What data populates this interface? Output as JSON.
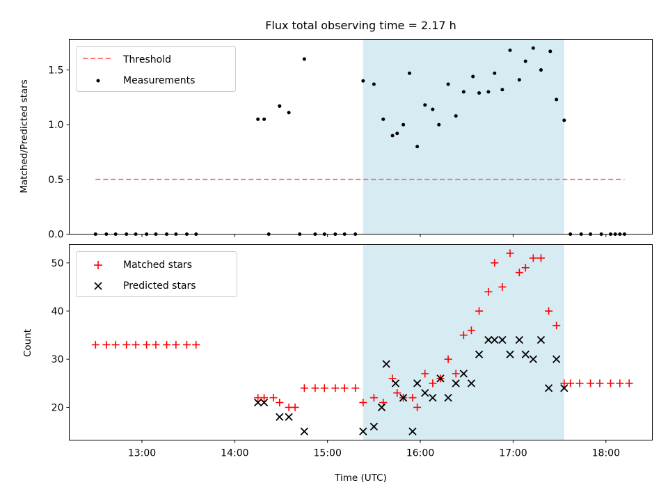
{
  "chart_data": [
    {
      "type": "scatter",
      "title": "Flux total observing time = 2.17 h",
      "xlabel": "",
      "ylabel": "Matched/Predicted stars",
      "x_unit": "hours UTC",
      "xlim": [
        "12:13",
        "18:30"
      ],
      "ylim": [
        0,
        1.78
      ],
      "yticks": [
        0.0,
        0.5,
        1.0,
        1.5
      ],
      "ytick_labels": [
        "0.0",
        "0.5",
        "1.0",
        "1.5"
      ],
      "legend_position": "upper-left",
      "grid": false,
      "shaded_interval": {
        "start": "15:23",
        "end": "17:33",
        "color": "#add8e6"
      },
      "threshold": {
        "name": "Threshold",
        "value": 0.5,
        "x_start": "12:30",
        "x_end": "18:12",
        "color": "#ff7070",
        "style": "dashed"
      },
      "series": [
        {
          "name": "Measurements",
          "color": "#000000",
          "marker": "dot",
          "points": [
            [
              "12:30",
              0
            ],
            [
              "12:37",
              0
            ],
            [
              "12:43",
              0
            ],
            [
              "12:50",
              0
            ],
            [
              "12:56",
              0
            ],
            [
              "13:03",
              0
            ],
            [
              "13:09",
              0
            ],
            [
              "13:16",
              0
            ],
            [
              "13:22",
              0
            ],
            [
              "13:29",
              0
            ],
            [
              "13:35",
              0
            ],
            [
              "14:15",
              1.05
            ],
            [
              "14:19",
              1.05
            ],
            [
              "14:22",
              0
            ],
            [
              "14:29",
              1.17
            ],
            [
              "14:35",
              1.11
            ],
            [
              "14:42",
              0
            ],
            [
              "14:45",
              1.6
            ],
            [
              "14:52",
              0
            ],
            [
              "14:58",
              0
            ],
            [
              "15:05",
              0
            ],
            [
              "15:11",
              0
            ],
            [
              "15:18",
              0
            ],
            [
              "15:23",
              1.4
            ],
            [
              "15:30",
              1.37
            ],
            [
              "15:36",
              1.05
            ],
            [
              "15:42",
              0.9
            ],
            [
              "15:45",
              0.92
            ],
            [
              "15:49",
              1.0
            ],
            [
              "15:53",
              1.47
            ],
            [
              "15:58",
              0.8
            ],
            [
              "16:03",
              1.18
            ],
            [
              "16:08",
              1.14
            ],
            [
              "16:12",
              1.0
            ],
            [
              "16:18",
              1.37
            ],
            [
              "16:23",
              1.08
            ],
            [
              "16:28",
              1.3
            ],
            [
              "16:34",
              1.44
            ],
            [
              "16:38",
              1.29
            ],
            [
              "16:44",
              1.3
            ],
            [
              "16:48",
              1.47
            ],
            [
              "16:53",
              1.32
            ],
            [
              "16:58",
              1.68
            ],
            [
              "17:04",
              1.41
            ],
            [
              "17:08",
              1.58
            ],
            [
              "17:13",
              1.7
            ],
            [
              "17:18",
              1.5
            ],
            [
              "17:24",
              1.67
            ],
            [
              "17:28",
              1.23
            ],
            [
              "17:33",
              1.04
            ],
            [
              "17:37",
              0
            ],
            [
              "17:44",
              0
            ],
            [
              "17:50",
              0
            ],
            [
              "17:57",
              0
            ],
            [
              "18:03",
              0
            ],
            [
              "18:06",
              0
            ],
            [
              "18:09",
              0
            ],
            [
              "18:12",
              0
            ]
          ]
        }
      ]
    },
    {
      "type": "scatter",
      "title": "",
      "xlabel": "Time (UTC)",
      "ylabel": "Count",
      "x_unit": "hours UTC",
      "xlim": [
        "12:13",
        "18:30"
      ],
      "ylim": [
        13.2,
        53.8
      ],
      "xticks": [
        "13:00",
        "14:00",
        "15:00",
        "16:00",
        "17:00",
        "18:00"
      ],
      "xtick_labels": [
        "13:00",
        "14:00",
        "15:00",
        "16:00",
        "17:00",
        "18:00"
      ],
      "yticks": [
        20,
        30,
        40,
        50
      ],
      "ytick_labels": [
        "20",
        "30",
        "40",
        "50"
      ],
      "legend_position": "upper-left",
      "grid": false,
      "shaded_interval": {
        "start": "15:23",
        "end": "17:33",
        "color": "#add8e6"
      },
      "series": [
        {
          "name": "Matched stars",
          "color": "#ff0000",
          "marker": "plus",
          "points": [
            [
              "12:30",
              33
            ],
            [
              "12:37",
              33
            ],
            [
              "12:43",
              33
            ],
            [
              "12:50",
              33
            ],
            [
              "12:56",
              33
            ],
            [
              "13:03",
              33
            ],
            [
              "13:09",
              33
            ],
            [
              "13:16",
              33
            ],
            [
              "13:22",
              33
            ],
            [
              "13:29",
              33
            ],
            [
              "13:35",
              33
            ],
            [
              "14:15",
              22
            ],
            [
              "14:19",
              22
            ],
            [
              "14:25",
              22
            ],
            [
              "14:29",
              21
            ],
            [
              "14:35",
              20
            ],
            [
              "14:39",
              20
            ],
            [
              "14:45",
              24
            ],
            [
              "14:52",
              24
            ],
            [
              "14:58",
              24
            ],
            [
              "15:05",
              24
            ],
            [
              "15:11",
              24
            ],
            [
              "15:18",
              24
            ],
            [
              "15:23",
              21
            ],
            [
              "15:30",
              22
            ],
            [
              "15:36",
              21
            ],
            [
              "15:42",
              26
            ],
            [
              "15:45",
              23
            ],
            [
              "15:49",
              22
            ],
            [
              "15:55",
              22
            ],
            [
              "15:58",
              20
            ],
            [
              "16:03",
              27
            ],
            [
              "16:08",
              25
            ],
            [
              "16:13",
              26
            ],
            [
              "16:18",
              30
            ],
            [
              "16:23",
              27
            ],
            [
              "16:28",
              35
            ],
            [
              "16:33",
              36
            ],
            [
              "16:38",
              40
            ],
            [
              "16:44",
              44
            ],
            [
              "16:48",
              50
            ],
            [
              "16:53",
              45
            ],
            [
              "16:58",
              52
            ],
            [
              "17:04",
              48
            ],
            [
              "17:08",
              49
            ],
            [
              "17:13",
              51
            ],
            [
              "17:18",
              51
            ],
            [
              "17:23",
              40
            ],
            [
              "17:28",
              37
            ],
            [
              "17:33",
              25
            ],
            [
              "17:37",
              25
            ],
            [
              "17:43",
              25
            ],
            [
              "17:50",
              25
            ],
            [
              "17:56",
              25
            ],
            [
              "18:03",
              25
            ],
            [
              "18:09",
              25
            ],
            [
              "18:15",
              25
            ]
          ]
        },
        {
          "name": "Predicted stars",
          "color": "#000000",
          "marker": "x",
          "points": [
            [
              "14:15",
              21
            ],
            [
              "14:19",
              21
            ],
            [
              "14:29",
              18
            ],
            [
              "14:35",
              18
            ],
            [
              "14:45",
              15
            ],
            [
              "15:23",
              15
            ],
            [
              "15:30",
              16
            ],
            [
              "15:35",
              20
            ],
            [
              "15:38",
              29
            ],
            [
              "15:44",
              25
            ],
            [
              "15:49",
              22
            ],
            [
              "15:55",
              15
            ],
            [
              "15:58",
              25
            ],
            [
              "16:03",
              23
            ],
            [
              "16:08",
              22
            ],
            [
              "16:13",
              26
            ],
            [
              "16:18",
              22
            ],
            [
              "16:23",
              25
            ],
            [
              "16:28",
              27
            ],
            [
              "16:33",
              25
            ],
            [
              "16:38",
              31
            ],
            [
              "16:44",
              34
            ],
            [
              "16:48",
              34
            ],
            [
              "16:53",
              34
            ],
            [
              "16:58",
              31
            ],
            [
              "17:04",
              34
            ],
            [
              "17:08",
              31
            ],
            [
              "17:13",
              30
            ],
            [
              "17:18",
              34
            ],
            [
              "17:23",
              24
            ],
            [
              "17:28",
              30
            ],
            [
              "17:33",
              24
            ]
          ]
        }
      ]
    }
  ]
}
